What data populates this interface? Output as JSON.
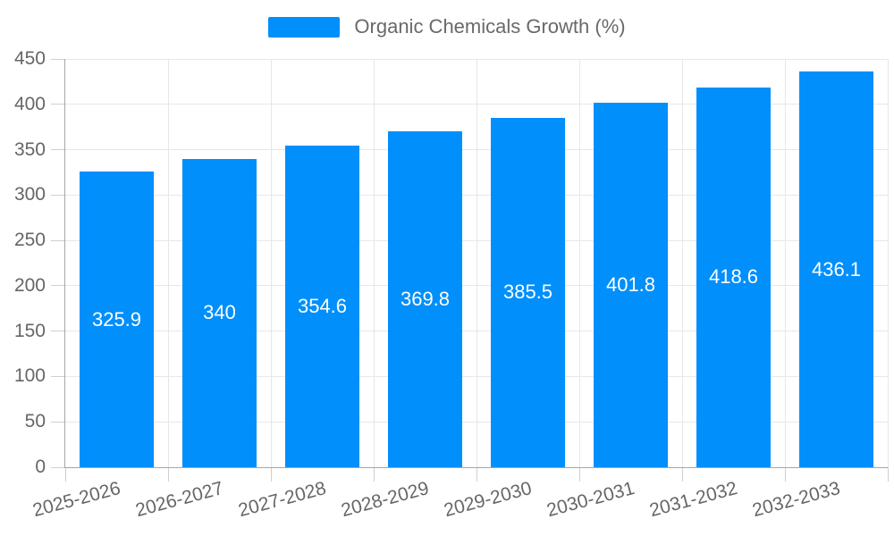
{
  "legend": {
    "label": "Organic Chemicals Growth (%)"
  },
  "colors": {
    "bar": "#008FFB",
    "bar_label_text": "#ffffff",
    "legend_text": "#696969",
    "axis_label_text": "#666666",
    "gridline": "#e7e7e7",
    "axis_line": "#a6a6a6",
    "tick": "#cfcfcf"
  },
  "chart_data": {
    "type": "bar",
    "title": "",
    "categories": [
      "2025-2026",
      "2026-2027",
      "2027-2028",
      "2028-2029",
      "2029-2030",
      "2030-2031",
      "2031-2032",
      "2032-2033"
    ],
    "series": [
      {
        "name": "Organic Chemicals Growth (%)",
        "values": [
          325.9,
          340,
          354.6,
          369.8,
          385.5,
          401.8,
          418.6,
          436.1
        ]
      }
    ],
    "data_labels": [
      "325.9",
      "340",
      "354.6",
      "369.8",
      "385.5",
      "401.8",
      "418.6",
      "436.1"
    ],
    "xlabel": "",
    "ylabel": "",
    "ylim": [
      0,
      450
    ],
    "yticks": [
      0,
      50,
      100,
      150,
      200,
      250,
      300,
      350,
      400,
      450
    ],
    "grid": true,
    "legend_position": "top"
  }
}
